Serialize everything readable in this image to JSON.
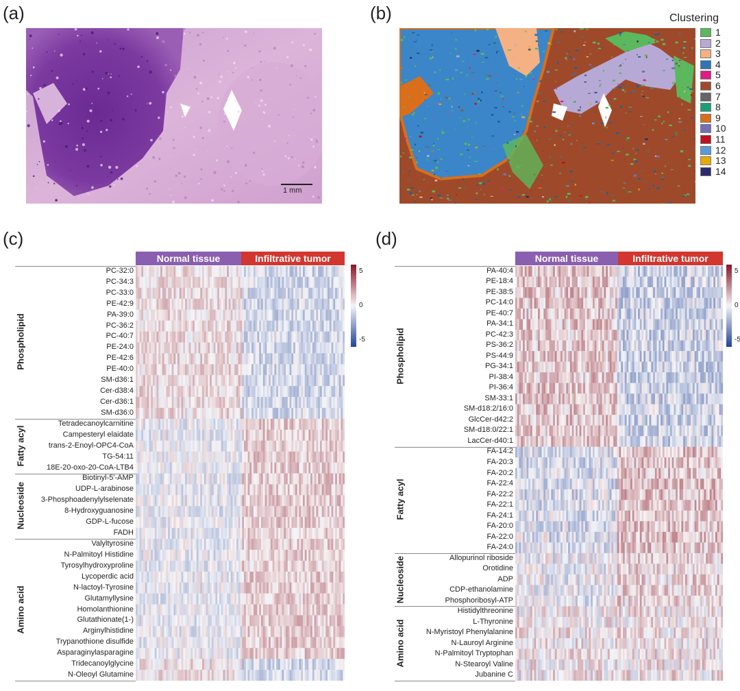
{
  "panels": {
    "a": {
      "letter": "(a)",
      "scalebar": "1 mm"
    },
    "b": {
      "letter": "(b)"
    },
    "c": {
      "letter": "(c)"
    },
    "d": {
      "letter": "(d)"
    }
  },
  "legend": {
    "title": "Clustering",
    "items": [
      {
        "label": "1",
        "color": "#5cb85c"
      },
      {
        "label": "2",
        "color": "#b7a9d6"
      },
      {
        "label": "3",
        "color": "#f4b183"
      },
      {
        "label": "4",
        "color": "#2e75b6"
      },
      {
        "label": "5",
        "color": "#e01b84"
      },
      {
        "label": "6",
        "color": "#9e4a2a"
      },
      {
        "label": "7",
        "color": "#666666"
      },
      {
        "label": "8",
        "color": "#1a9e77"
      },
      {
        "label": "9",
        "color": "#d96f1b"
      },
      {
        "label": "10",
        "color": "#7570b3"
      },
      {
        "label": "11",
        "color": "#c0111f"
      },
      {
        "label": "12",
        "color": "#5b9bd5"
      },
      {
        "label": "13",
        "color": "#e6ab02"
      },
      {
        "label": "14",
        "color": "#2b2a6b"
      }
    ]
  },
  "heatmap_c": {
    "header_normal": "Normal tissue",
    "header_tumor": "Infiltrative tumor",
    "colorbar_ticks": [
      "5",
      "0",
      "-5"
    ],
    "categories": [
      {
        "name": "Phospholipid",
        "rows": [
          "PC-32:0",
          "PC-34:3",
          "PC-33:0",
          "PE-42:9",
          "PA-39:0",
          "PC-36:2",
          "PC-40:7",
          "PE-24:0",
          "PE-42:6",
          "PE-40:0",
          "SM-d36:1",
          "Cer-d38:4",
          "Cer-d36:1",
          "SM-d36:0"
        ]
      },
      {
        "name": "Fatty acyl",
        "rows": [
          "Tetradecanoylcarnitine",
          "Campesteryl elaidate",
          "trans-2-Enoyl-OPC4-CoA",
          "TG-54:11",
          "18E-20-oxo-20-CoA-LTB4"
        ]
      },
      {
        "name": "Nucleoside",
        "rows": [
          "Biotinyl-5'-AMP",
          "UDP-L-arabinose",
          "3-Phosphoadenylylselenate",
          "8-Hydroxyguanosine",
          "GDP-L-fucose",
          "FADH"
        ]
      },
      {
        "name": "Amino acid",
        "rows": [
          "Valyltyrosine",
          "N-Palmitoyl Histidine",
          "Tyrosylhydroxyproline",
          "Lycoperdic acid",
          "N-lactoyl-Tyrosine",
          "Glutamyllysine",
          "Homolanthionine",
          "Glutathionate(1-)",
          "Arginylhistidine",
          "Trypanothione disulfide",
          "Asparaginylasparagine",
          "Tridecanoylglycine",
          "N-Oleoyl Glutamine"
        ]
      }
    ]
  },
  "heatmap_d": {
    "header_normal": "Normal tissue",
    "header_tumor": "Infiltrative tumor",
    "colorbar_ticks": [
      "5",
      "0",
      "-5"
    ],
    "categories": [
      {
        "name": "Phospholipid",
        "rows": [
          "PA-40:4",
          "PE-18:4",
          "PE-38:5",
          "PC-14:0",
          "PE-40:7",
          "PA-34:1",
          "PC-42:3",
          "PS-36:2",
          "PS-44:9",
          "PG-34:1",
          "PI-38:4",
          "PI-36:4",
          "SM-33:1",
          "SM-d18:2/16:0",
          "GlcCer-d42:2",
          "SM-d18:0/22:1",
          "LacCer-d40:1"
        ]
      },
      {
        "name": "Fatty acyl",
        "rows": [
          "FA-14:2",
          "FA-20:3",
          "FA-20:2",
          "FA-22:4",
          "FA-22:2",
          "FA-22:1",
          "FA-24:1",
          "FA-20:0",
          "FA-22:0",
          "FA-24:0"
        ]
      },
      {
        "name": "Nucleoside",
        "rows": [
          "Allopurinol riboside",
          "Orotidine",
          "ADP",
          "CDP-ethanolamine",
          "Phosphoribosyl-ATP"
        ]
      },
      {
        "name": "Amino acid",
        "rows": [
          "Histidylthreonine",
          "L-Thyronine",
          "N-Myristoyl Phenylalanine",
          "N-Lauroyl Arginine",
          "N-Palmitoyl Tryptophan",
          "N-Stearoyl Valine",
          "Jubanine C"
        ]
      }
    ]
  },
  "colors": {
    "normal_header": "#8a5fb0",
    "tumor_header": "#d2372f",
    "high": "#8b1a2a",
    "low": "#27479a"
  }
}
